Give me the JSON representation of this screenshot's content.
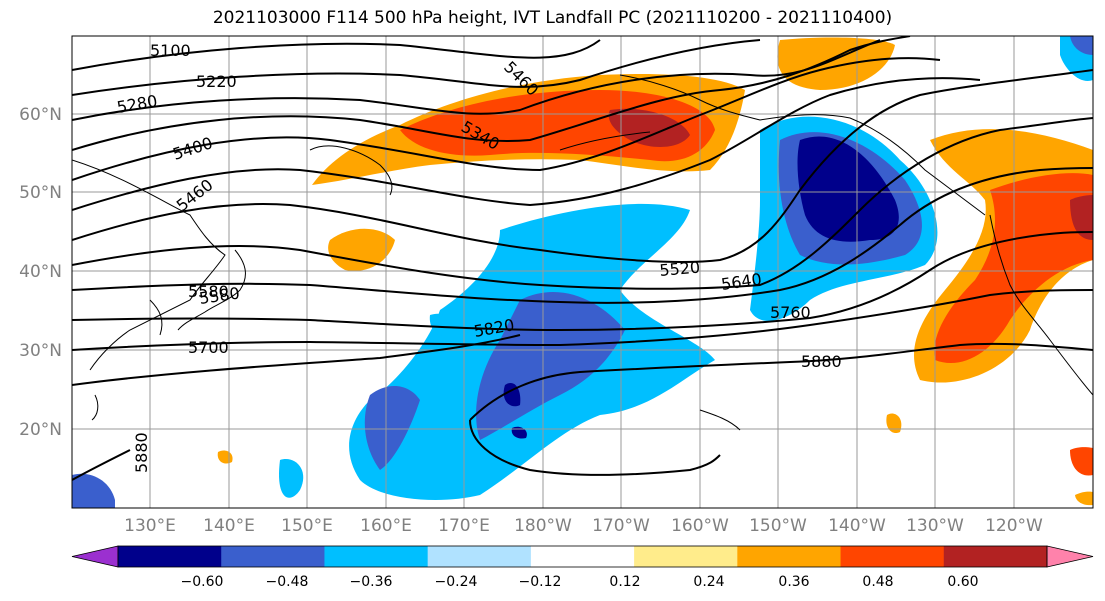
{
  "title": "2021103000 F114 500 hPa height, IVT Landfall PC (2021110200 - 2021110400)",
  "map": {
    "lat_labels": [
      "60°N",
      "50°N",
      "40°N",
      "30°N",
      "20°N"
    ],
    "lon_labels": [
      "130°E",
      "140°E",
      "150°E",
      "160°E",
      "170°E",
      "180°W",
      "170°W",
      "160°W",
      "150°W",
      "140°W",
      "130°W",
      "120°W"
    ]
  },
  "contours": {
    "labels": [
      "5100",
      "5220",
      "5280",
      "5400",
      "5460",
      "5340",
      "5460",
      "5520",
      "5640",
      "5760",
      "5580",
      "5580",
      "5700",
      "5820",
      "5880",
      "5880"
    ],
    "line_color": "#000000"
  },
  "colorbar": {
    "tick_labels": [
      "−0.60",
      "−0.48",
      "−0.36",
      "−0.24",
      "−0.12",
      "0.12",
      "0.24",
      "0.36",
      "0.48",
      "0.60"
    ],
    "colors": [
      "#9b30d0",
      "#00008b",
      "#3a5fcd",
      "#00bfff",
      "#b0e2ff",
      "#ffffff",
      "#ffec8b",
      "#ffa500",
      "#ff4500",
      "#b22222",
      "#ff82ab"
    ]
  }
}
